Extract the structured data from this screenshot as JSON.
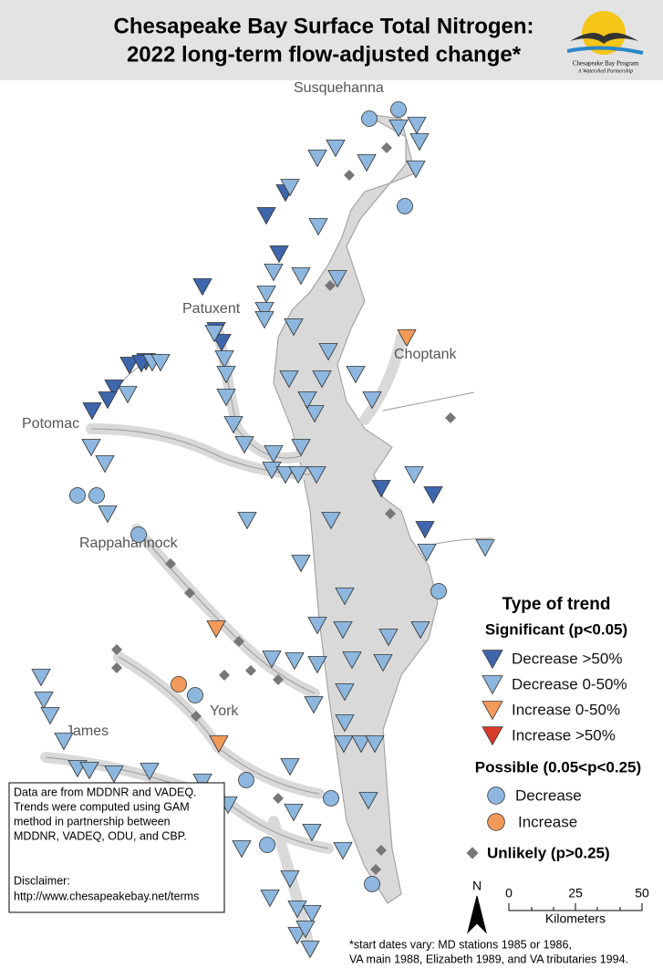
{
  "header": {
    "title_lines": [
      "Chesapeake Bay Surface Total Nitrogen:",
      "2022 long-term flow-adjusted change*"
    ],
    "logo": {
      "name": "Chesapeake Bay Program",
      "tagline": "A Watershed Partnership"
    }
  },
  "map_labels": [
    "Susquehanna",
    "Patuxent",
    "Choptank",
    "Potomac",
    "Rappahannock",
    "York",
    "James"
  ],
  "legend": {
    "title": "Type of trend",
    "significant": {
      "heading": "Significant (p<0.05)",
      "items": [
        "Decrease >50%",
        "Decrease 0-50%",
        "Increase 0-50%",
        "Increase >50%"
      ]
    },
    "possible": {
      "heading": "Possible (0.05<p<0.25)",
      "items": [
        "Decrease",
        "Increase"
      ]
    },
    "unlikely": "Unlikely (p>0.25)"
  },
  "scale": {
    "north": "N",
    "ticks": [
      "0",
      "25",
      "50"
    ],
    "unit": "Kilometers"
  },
  "note": {
    "lines": [
      "Data are from MDDNR and VADEQ.",
      "Trends were computed using GAM",
      "method in partnership between",
      "MDDNR, VADEQ, ODU, and CBP.",
      "Disclaimer:",
      "http://www.chesapeakebay.net/terms"
    ]
  },
  "footnote": {
    "lines": [
      "*start dates vary: MD stations 1985 or 1986,",
      "VA main 1988, Elizabeth 1989, and VA tributaries 1994."
    ]
  }
}
